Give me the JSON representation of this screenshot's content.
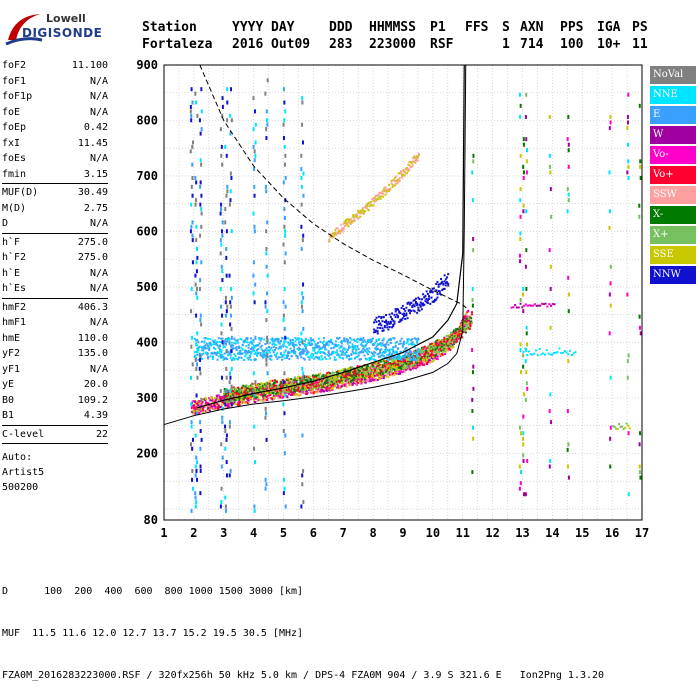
{
  "logo": {
    "line1": "Lowell",
    "line2": "DIGISONDE"
  },
  "header": {
    "labels": [
      "Station",
      "YYYY",
      "DAY",
      "DDD",
      "HHMMSS",
      "P1",
      "FFS",
      "S",
      "AXN",
      "PPS",
      "IGA",
      "PS"
    ],
    "values": [
      "Fortaleza",
      "2016",
      "Out09",
      "283",
      "223000",
      "RSF",
      "",
      "1",
      "714",
      "100",
      "10+",
      "11"
    ]
  },
  "params": [
    {
      "group": [
        [
          "foF2",
          "11.100"
        ],
        [
          "foF1",
          "N/A"
        ],
        [
          "foF1p",
          "N/A"
        ],
        [
          "foE",
          "N/A"
        ],
        [
          "foEp",
          "0.42"
        ],
        [
          "fxI",
          "11.45"
        ],
        [
          "foEs",
          "N/A"
        ],
        [
          "fmin",
          "3.15"
        ]
      ]
    },
    {
      "group": [
        [
          "MUF(D)",
          "30.49"
        ],
        [
          "M(D)",
          "2.75"
        ],
        [
          "D",
          "N/A"
        ]
      ]
    },
    {
      "group": [
        [
          "h`F",
          "275.0"
        ],
        [
          "h`F2",
          "275.0"
        ],
        [
          "h`E",
          "N/A"
        ],
        [
          "h`Es",
          "N/A"
        ]
      ]
    },
    {
      "group": [
        [
          "hmF2",
          "406.3"
        ],
        [
          "hmF1",
          "N/A"
        ],
        [
          "hmE",
          "110.0"
        ],
        [
          "yF2",
          "135.0"
        ],
        [
          "yF1",
          "N/A"
        ],
        [
          "yE",
          "20.0"
        ],
        [
          "B0",
          "109.2"
        ],
        [
          "B1",
          "4.39"
        ]
      ]
    },
    {
      "group": [
        [
          "C-level",
          "22"
        ]
      ]
    }
  ],
  "autoscale": [
    "Auto:",
    "Artist5",
    "500200"
  ],
  "legend": [
    {
      "label": "NoVal",
      "color": "#808080"
    },
    {
      "label": "NNE",
      "color": "#00e5ff"
    },
    {
      "label": "E",
      "color": "#3aa0ff"
    },
    {
      "label": "W",
      "color": "#a000a0"
    },
    {
      "label": "Vo-",
      "color": "#ff00c8"
    },
    {
      "label": "Vo+",
      "color": "#ff0030"
    },
    {
      "label": "SSW",
      "color": "#ffa0a0"
    },
    {
      "label": "X-",
      "color": "#007a00"
    },
    {
      "label": "X+",
      "color": "#77c060"
    },
    {
      "label": "SSE",
      "color": "#c8c800"
    },
    {
      "label": "NNW",
      "color": "#1010d0"
    }
  ],
  "footer": {
    "line1": "D      100  200  400  600  800 1000 1500 3000 [km]",
    "line2": "MUF  11.5 11.6 12.0 12.7 13.7 15.2 19.5 30.5 [MHz]",
    "line3": "FZA0M_2016283223000.RSF / 320fx256h 50 kHz 5.0 km / DPS-4 FZA0M 904 / 3.9 S 321.6 E   Ion2Png 1.3.20"
  },
  "chart_data": {
    "type": "scatter",
    "xlim": [
      1,
      17
    ],
    "ylim": [
      80,
      900
    ],
    "x_ticks": [
      1,
      2,
      3,
      4,
      5,
      6,
      7,
      8,
      9,
      10,
      11,
      12,
      13,
      14,
      15,
      16,
      17
    ],
    "y_ticks": [
      80,
      200,
      300,
      400,
      500,
      600,
      700,
      800,
      900
    ],
    "grid": true,
    "profile_curve": {
      "x": [
        1.0,
        2.0,
        3.0,
        4.0,
        5.0,
        6.0,
        7.0,
        8.0,
        9.0,
        10.0,
        10.5,
        10.8,
        11.0,
        11.05,
        11.1
      ],
      "y": [
        252,
        268,
        280,
        289,
        295,
        302,
        310,
        319,
        330,
        346,
        362,
        380,
        420,
        600,
        900
      ]
    },
    "mode_curve": {
      "x": [
        2.1,
        3.0,
        4.0,
        5.0,
        6.0,
        7.0,
        8.0,
        9.0,
        10.0,
        10.5,
        10.8,
        11.0,
        11.05
      ],
      "y": [
        282,
        296,
        308,
        318,
        330,
        346,
        364,
        382,
        410,
        440,
        470,
        560,
        900
      ]
    },
    "muf_dashed_curve": {
      "x": [
        2.2,
        3,
        4,
        5,
        6,
        7,
        8,
        9,
        10,
        11,
        11.2
      ],
      "y": [
        900,
        800,
        718,
        660,
        614,
        578,
        548,
        522,
        494,
        468,
        458
      ]
    },
    "o_trace": {
      "x": [
        1.9,
        2.5,
        3,
        3.5,
        4,
        4.5,
        5,
        5.5,
        6,
        6.5,
        7,
        7.5,
        8,
        8.5,
        9,
        9.5,
        10,
        10.3,
        10.6,
        10.8,
        11.0,
        11.2
      ],
      "y": [
        278,
        286,
        292,
        297,
        302,
        306,
        310,
        314,
        318,
        323,
        328,
        334,
        340,
        347,
        355,
        364,
        375,
        385,
        398,
        410,
        430,
        450
      ]
    },
    "x_trace": {
      "x": [
        3,
        3.5,
        4,
        4.5,
        5,
        5.5,
        6,
        6.5,
        7,
        7.5,
        8,
        8.5,
        9,
        9.5,
        10,
        10.5,
        11,
        11.3
      ],
      "y": [
        300,
        305,
        310,
        314,
        318,
        322,
        326,
        330,
        336,
        342,
        348,
        355,
        362,
        372,
        384,
        398,
        420,
        440
      ]
    },
    "spread_band": {
      "x": [
        2.0,
        9.5
      ],
      "y": [
        370,
        410
      ]
    },
    "multi_hop_trace": {
      "x": [
        6.5,
        7,
        7.5,
        8,
        8.5,
        9,
        9.5
      ],
      "y": [
        590,
        612,
        634,
        656,
        682,
        708,
        740
      ]
    },
    "nnw_cluster": {
      "x": [
        8,
        8.5,
        9,
        9.5,
        10,
        10.5
      ],
      "y": [
        430,
        440,
        456,
        470,
        490,
        515
      ]
    },
    "oblique_echoes": {
      "x": [
        12.9,
        13.0,
        13.1,
        13.5,
        14.0,
        14.5,
        14.8
      ],
      "y": [
        470,
        470,
        468,
        470,
        385,
        385,
        385
      ]
    }
  }
}
